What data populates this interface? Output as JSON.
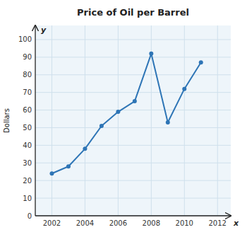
{
  "chart_data": {
    "type": "line",
    "title": "Price of Oil per Barrel",
    "x_label": "x",
    "y_label": "Dollars",
    "annotations": [
      "y"
    ],
    "x": [
      2002,
      2003,
      2004,
      2005,
      2006,
      2007,
      2008,
      2009,
      2010,
      2011
    ],
    "values": [
      24,
      28,
      38,
      51,
      59,
      65,
      92,
      53,
      72,
      87
    ],
    "xlim": [
      2001.0,
      2012.8
    ],
    "ylim": [
      0,
      108
    ],
    "xticks": [
      2002,
      2004,
      2006,
      2008,
      2010,
      2012
    ],
    "yticks": [
      0,
      10,
      20,
      30,
      40,
      50,
      60,
      70,
      80,
      90,
      100
    ],
    "color": "#2e75b6",
    "marker": "circle",
    "grid": true
  }
}
